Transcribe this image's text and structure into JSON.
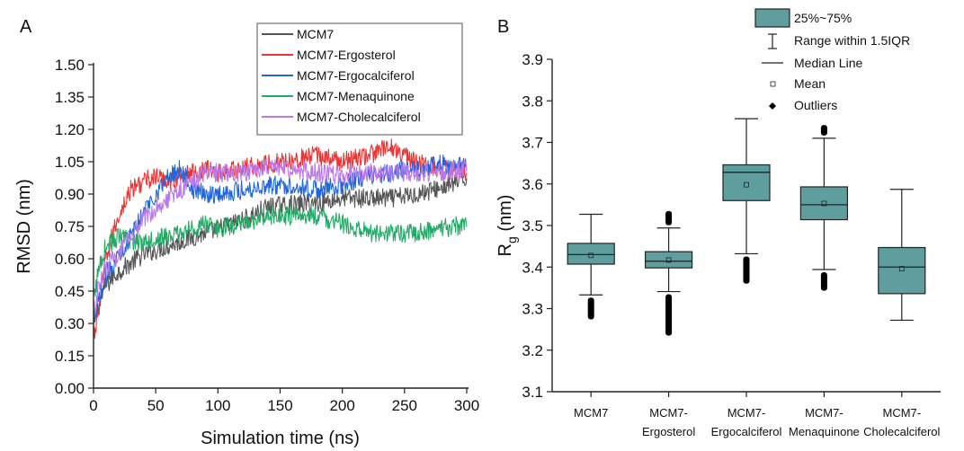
{
  "chart_data": [
    {
      "panel_label": "A",
      "type": "line",
      "xlabel": "Simulation time (ns)",
      "ylabel": "RMSD (nm)",
      "xlim": [
        0,
        300
      ],
      "ylim": [
        0,
        1.5
      ],
      "x_ticks": [
        "0",
        "50",
        "100",
        "150",
        "200",
        "250",
        "300"
      ],
      "y_ticks": [
        "0.00",
        "0.15",
        "0.30",
        "0.45",
        "0.60",
        "0.75",
        "0.90",
        "1.05",
        "1.20",
        "1.35",
        "1.50"
      ],
      "legend_position": "top-right",
      "series": [
        {
          "name": "MCM7",
          "color": "#555555",
          "x": [
            0,
            5,
            10,
            20,
            30,
            40,
            50,
            60,
            70,
            80,
            90,
            100,
            120,
            140,
            160,
            180,
            200,
            220,
            240,
            260,
            280,
            300
          ],
          "y": [
            0.28,
            0.4,
            0.48,
            0.54,
            0.58,
            0.62,
            0.64,
            0.66,
            0.68,
            0.7,
            0.72,
            0.74,
            0.78,
            0.84,
            0.85,
            0.86,
            0.88,
            0.88,
            0.88,
            0.9,
            0.93,
            0.97
          ]
        },
        {
          "name": "MCM7-Ergosterol",
          "color": "#ee3333",
          "x": [
            0,
            5,
            10,
            20,
            30,
            40,
            50,
            60,
            70,
            80,
            90,
            100,
            120,
            140,
            160,
            180,
            200,
            220,
            240,
            260,
            280,
            300
          ],
          "y": [
            0.22,
            0.4,
            0.6,
            0.8,
            0.92,
            0.96,
            0.98,
            0.96,
            0.98,
            1.0,
            1.02,
            1.0,
            1.02,
            1.04,
            1.06,
            1.08,
            1.05,
            1.08,
            1.12,
            1.04,
            1.02,
            1.0
          ]
        },
        {
          "name": "MCM7-Ergocalciferol",
          "color": "#2266dd",
          "x": [
            0,
            5,
            10,
            20,
            30,
            40,
            50,
            60,
            70,
            80,
            90,
            100,
            120,
            140,
            160,
            180,
            200,
            220,
            240,
            260,
            280,
            300
          ],
          "y": [
            0.3,
            0.42,
            0.52,
            0.62,
            0.7,
            0.82,
            0.9,
            0.98,
            1.02,
            0.92,
            0.9,
            0.9,
            0.92,
            0.94,
            0.94,
            0.92,
            0.94,
            0.98,
            1.0,
            1.02,
            1.04,
            1.02
          ]
        },
        {
          "name": "MCM7-Menaquinone",
          "color": "#22aa66",
          "x": [
            0,
            5,
            10,
            20,
            30,
            40,
            50,
            60,
            70,
            80,
            90,
            100,
            120,
            140,
            160,
            180,
            200,
            220,
            240,
            260,
            280,
            300
          ],
          "y": [
            0.4,
            0.58,
            0.66,
            0.7,
            0.68,
            0.68,
            0.7,
            0.7,
            0.72,
            0.74,
            0.76,
            0.74,
            0.76,
            0.8,
            0.8,
            0.8,
            0.76,
            0.72,
            0.72,
            0.72,
            0.74,
            0.76
          ]
        },
        {
          "name": "MCM7-Cholecalciferol",
          "color": "#bb77ee",
          "x": [
            0,
            5,
            10,
            20,
            30,
            40,
            50,
            60,
            70,
            80,
            90,
            100,
            120,
            140,
            160,
            180,
            200,
            220,
            240,
            260,
            280,
            300
          ],
          "y": [
            0.35,
            0.48,
            0.56,
            0.62,
            0.7,
            0.78,
            0.84,
            0.88,
            0.92,
            0.96,
            1.0,
            1.0,
            1.0,
            1.02,
            1.02,
            1.0,
            0.98,
            1.0,
            1.0,
            1.0,
            1.0,
            1.02
          ]
        }
      ]
    },
    {
      "panel_label": "B",
      "type": "box",
      "ylabel": "R",
      "ylabel_sub": "g",
      "ylabel_unit": " (nm)",
      "ylim": [
        3.1,
        3.9
      ],
      "y_ticks": [
        "3.1",
        "3.2",
        "3.3",
        "3.4",
        "3.5",
        "3.6",
        "3.7",
        "3.8",
        "3.9"
      ],
      "box_color": "#5f9e9e",
      "legend_position": "top-right",
      "legend": {
        "box": "25%~75%",
        "whisker": "Range within 1.5IQR",
        "median": "Median Line",
        "mean": "Mean",
        "outliers": "Outliers"
      },
      "categories": [
        {
          "line1": "MCM7",
          "line2": "",
          "q1": 3.407,
          "median": 3.43,
          "q3": 3.457,
          "mean": 3.428,
          "whisker_low": 3.333,
          "whisker_high": 3.527,
          "outlier_low": [
            3.274,
            3.333
          ],
          "outlier_high": null
        },
        {
          "line1": "MCM7-",
          "line2": "Ergosterol",
          "q1": 3.398,
          "median": 3.414,
          "q3": 3.437,
          "mean": 3.417,
          "whisker_low": 3.341,
          "whisker_high": 3.494,
          "outlier_low": [
            3.235,
            3.341
          ],
          "outlier_high": [
            3.494,
            3.535
          ]
        },
        {
          "line1": "MCM7-",
          "line2": "Ergocalciferol",
          "q1": 3.56,
          "median": 3.628,
          "q3": 3.646,
          "mean": 3.598,
          "whisker_low": 3.432,
          "whisker_high": 3.757,
          "outlier_low": [
            3.36,
            3.432
          ],
          "outlier_high": null
        },
        {
          "line1": "MCM7-",
          "line2": "Menaquinone",
          "q1": 3.514,
          "median": 3.55,
          "q3": 3.593,
          "mean": 3.553,
          "whisker_low": 3.394,
          "whisker_high": 3.71,
          "outlier_low": [
            3.343,
            3.394
          ],
          "outlier_high": [
            3.71,
            3.742
          ]
        },
        {
          "line1": "MCM7-",
          "line2": "Cholecalciferol",
          "q1": 3.336,
          "median": 3.4,
          "q3": 3.447,
          "mean": 3.396,
          "whisker_low": 3.272,
          "whisker_high": 3.587,
          "outlier_low": null,
          "outlier_high": null
        }
      ]
    }
  ]
}
